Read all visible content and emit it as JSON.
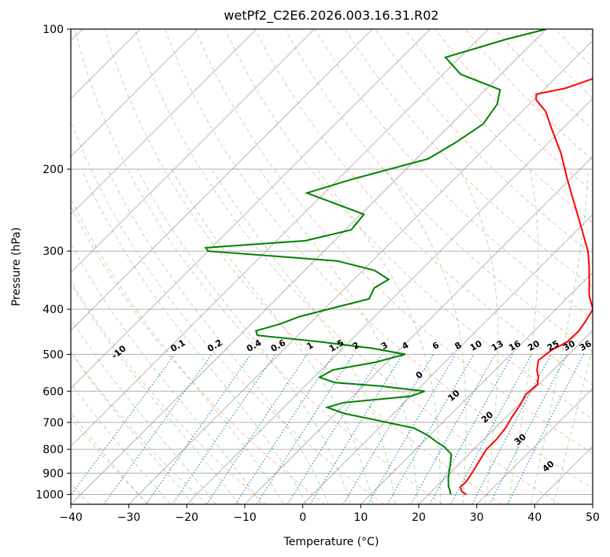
{
  "chart_data": {
    "type": "line",
    "subtype": "skew-t log-p",
    "title": "wetPf2_C2E6.2026.003.16.31.R02",
    "xlabel": "Temperature (°C)",
    "ylabel": "Pressure (hPa)",
    "xlim": [
      -40,
      50
    ],
    "ylim": [
      1050,
      100
    ],
    "y_scale": "log",
    "x_ticks": [
      "−40",
      "−30",
      "−20",
      "−10",
      "0",
      "10",
      "20",
      "30",
      "40",
      "50"
    ],
    "y_ticks": [
      "100",
      "200",
      "300",
      "400",
      "500",
      "600",
      "700",
      "800",
      "900",
      "1000"
    ],
    "grid": true,
    "series": [
      {
        "color": "#ff0000",
        "points": [
          [
            1000,
            26.5
          ],
          [
            985,
            25.2
          ],
          [
            965,
            24.2
          ],
          [
            940,
            24.3
          ],
          [
            900,
            23.8
          ],
          [
            850,
            23.0
          ],
          [
            800,
            22.2
          ],
          [
            760,
            22.2
          ],
          [
            720,
            21.8
          ],
          [
            680,
            21.0
          ],
          [
            640,
            20.3
          ],
          [
            610,
            19.5
          ],
          [
            580,
            19.8
          ],
          [
            560,
            18.7
          ],
          [
            540,
            17.2
          ],
          [
            515,
            15.8
          ],
          [
            490,
            16.3
          ],
          [
            470,
            17.6
          ],
          [
            445,
            17.7
          ],
          [
            425,
            17.2
          ],
          [
            400,
            16.4
          ],
          [
            375,
            13.5
          ],
          [
            355,
            11.6
          ],
          [
            325,
            8.5
          ],
          [
            300,
            5.5
          ],
          [
            270,
            0.8
          ],
          [
            240,
            -4.5
          ],
          [
            210,
            -10.5
          ],
          [
            185,
            -16.0
          ],
          [
            165,
            -21.5
          ],
          [
            150,
            -26.0
          ],
          [
            142,
            -29.5
          ],
          [
            138,
            -30.5
          ],
          [
            134,
            -26.5
          ],
          [
            128,
            -23.5
          ],
          [
            118,
            -23.0
          ],
          [
            110,
            -27.0
          ],
          [
            104,
            -30.0
          ],
          [
            100,
            -31.5
          ]
        ]
      },
      {
        "color": "#008000",
        "points": [
          [
            1000,
            23.8
          ],
          [
            985,
            23.2
          ],
          [
            960,
            22.0
          ],
          [
            920,
            20.5
          ],
          [
            860,
            18.5
          ],
          [
            820,
            17.0
          ],
          [
            790,
            14.5
          ],
          [
            770,
            12.2
          ],
          [
            745,
            9.5
          ],
          [
            720,
            6.0
          ],
          [
            690,
            -2.5
          ],
          [
            670,
            -8.5
          ],
          [
            650,
            -12.5
          ],
          [
            635,
            -10.5
          ],
          [
            615,
            0.0
          ],
          [
            600,
            1.5
          ],
          [
            585,
            -7.0
          ],
          [
            575,
            -15.5
          ],
          [
            560,
            -19.0
          ],
          [
            540,
            -18.0
          ],
          [
            520,
            -12.0
          ],
          [
            500,
            -8.2
          ],
          [
            485,
            -15.0
          ],
          [
            470,
            -25.0
          ],
          [
            455,
            -37.0
          ],
          [
            445,
            -38.0
          ],
          [
            430,
            -35.0
          ],
          [
            415,
            -33.0
          ],
          [
            395,
            -28.0
          ],
          [
            380,
            -24.0
          ],
          [
            370,
            -24.5
          ],
          [
            360,
            -25.0
          ],
          [
            345,
            -24.0
          ],
          [
            330,
            -28.0
          ],
          [
            315,
            -36.0
          ],
          [
            300,
            -60.0
          ],
          [
            295,
            -61.0
          ],
          [
            285,
            -45.0
          ],
          [
            270,
            -39.0
          ],
          [
            250,
            -39.5
          ],
          [
            225,
            -53.0
          ],
          [
            210,
            -47.5
          ],
          [
            190,
            -38.0
          ],
          [
            175,
            -36.0
          ],
          [
            160,
            -34.5
          ],
          [
            145,
            -35.5
          ],
          [
            135,
            -37.5
          ],
          [
            125,
            -47.0
          ],
          [
            115,
            -52.5
          ],
          [
            105,
            -45.0
          ],
          [
            100,
            -40.0
          ]
        ]
      }
    ],
    "background_lines": {
      "dry_adiabats_theta_c": [
        -100,
        -90,
        -80,
        -70,
        -60,
        -50,
        -40,
        -30,
        -20,
        -10,
        0,
        10,
        20,
        30,
        40
      ],
      "moist_adiabats_label_at_1000hpa": [
        "0",
        "10",
        "20",
        "30",
        "40"
      ],
      "mixing_ratio_g_per_kg": [
        "0.1",
        "0.2",
        "0.4",
        "0.6",
        "1",
        "1.5",
        "2",
        "3",
        "4",
        "6",
        "8",
        "10",
        "13",
        "16",
        "20",
        "25",
        "30",
        "36"
      ]
    },
    "colors": {
      "temperature": "#ff0000",
      "dewpoint": "#008000",
      "dry_adiabat": "#f4a582",
      "moist_adiabat": "#66bd63",
      "mixing_ratio": "#2b8cbe",
      "isotherm": "#808080"
    }
  }
}
